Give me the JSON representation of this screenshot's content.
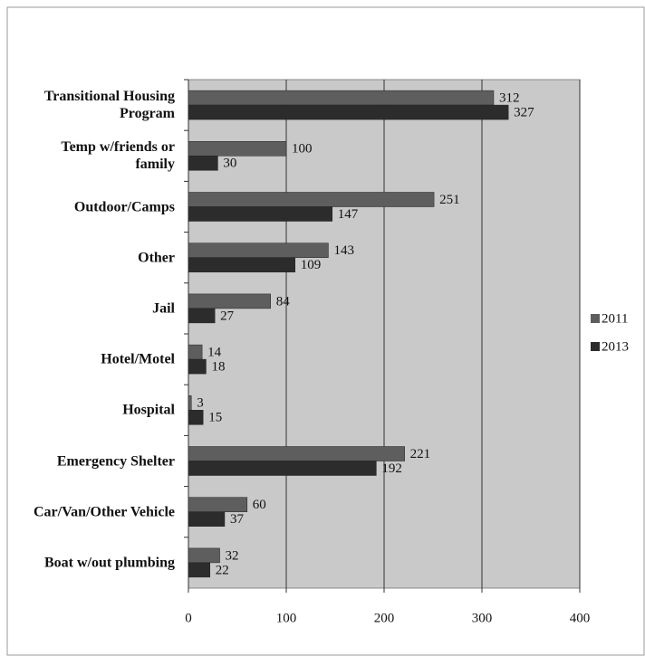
{
  "chart_data": {
    "type": "hbar",
    "categories": [
      "Transitional Housing Program",
      "Temp w/friends or family",
      "Outdoor/Camps",
      "Other",
      "Jail",
      "Hotel/Motel",
      "Hospital",
      "Emergency Shelter",
      "Car/Van/Other Vehicle",
      "Boat w/out plumbing"
    ],
    "series": [
      {
        "name": "2011",
        "color": "#5e5e5e",
        "values": [
          312,
          100,
          251,
          143,
          84,
          14,
          3,
          221,
          60,
          32
        ]
      },
      {
        "name": "2013",
        "color": "#2c2c2c",
        "values": [
          327,
          30,
          147,
          109,
          27,
          18,
          15,
          192,
          37,
          22
        ]
      }
    ],
    "xlim": [
      0,
      400
    ],
    "xticks": [
      0,
      100,
      200,
      300,
      400
    ],
    "grid": true,
    "legend": "right"
  }
}
